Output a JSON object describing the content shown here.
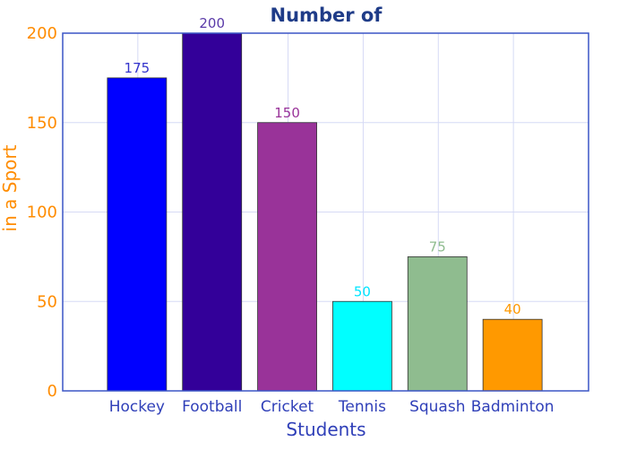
{
  "chart_data": {
    "type": "bar",
    "title": "Number of",
    "xlabel": "Students",
    "ylabel": "in a Sport",
    "categories": [
      "Hockey",
      "Football",
      "Cricket",
      "Tennis",
      "Squash",
      "Badminton"
    ],
    "values": [
      175,
      200,
      150,
      50,
      75,
      40
    ],
    "value_labels": [
      "175",
      "200",
      "150",
      "50",
      "75",
      "40"
    ],
    "bar_colors": [
      "#0000ff",
      "#330099",
      "#993399",
      "#00ffff",
      "#8fbc8f",
      "#ff9900"
    ],
    "label_colors": [
      "#3333cc",
      "#5a3aa8",
      "#993399",
      "#00e5ff",
      "#8fbc8f",
      "#ff9900"
    ],
    "ylim": [
      0,
      200
    ],
    "yticks": [
      0,
      50,
      100,
      150,
      200
    ],
    "ytick_labels": [
      "0",
      "50",
      "100",
      "150",
      "200"
    ],
    "grid": true,
    "colors": {
      "title": "#1f3c88",
      "axis_frame": "#3a55c5",
      "grid": "#d6daf5",
      "ytick": "#ff8c00",
      "ylabel": "#ff8c00",
      "xtick": "#2f3fb8",
      "xlabel": "#2f3fb8"
    }
  }
}
